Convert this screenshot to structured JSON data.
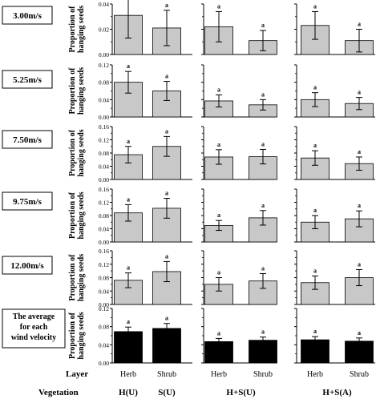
{
  "chart_data": {
    "type": "bar",
    "ylabel": "Proportion of hanging seeds",
    "row_labels": [
      "3.00m/s",
      "5.25m/s",
      "7.50m/s",
      "9.75m/s",
      "12.00m/s",
      "The average for each wind velocity"
    ],
    "panel_sets": [
      {
        "vegetation_labels": [
          "H(U)",
          "S(U)"
        ],
        "layer_labels": [
          "Herb",
          "Shrub"
        ]
      },
      {
        "vegetation_labels": [
          "H+S(U)"
        ],
        "layer_labels": [
          "Herb",
          "Shrub"
        ]
      },
      {
        "vegetation_labels": [
          "H+S(A)"
        ],
        "layer_labels": [
          "Herb",
          "Shrub"
        ]
      }
    ],
    "footer": {
      "layer_title": "Layer",
      "vegetation_title": "Vegetation"
    },
    "rows": [
      {
        "ylim": [
          0,
          0.04
        ],
        "yticks": [
          "0.00",
          "0.02",
          "0.04"
        ],
        "fill": "#c8c8c8",
        "bars": [
          {
            "value": 0.031,
            "error": 0.018,
            "sig": "a"
          },
          {
            "value": 0.021,
            "error": 0.014,
            "sig": "a"
          },
          {
            "value": 0.022,
            "error": 0.012,
            "sig": "a"
          },
          {
            "value": 0.011,
            "error": 0.008,
            "sig": "a"
          },
          {
            "value": 0.023,
            "error": 0.011,
            "sig": "a"
          },
          {
            "value": 0.011,
            "error": 0.009,
            "sig": "a"
          }
        ]
      },
      {
        "ylim": [
          0,
          0.12
        ],
        "yticks": [
          "0.00",
          "0.04",
          "0.08",
          "0.12"
        ],
        "fill": "#c8c8c8",
        "bars": [
          {
            "value": 0.08,
            "error": 0.025,
            "sig": "a"
          },
          {
            "value": 0.06,
            "error": 0.022,
            "sig": "a"
          },
          {
            "value": 0.037,
            "error": 0.014,
            "sig": "a"
          },
          {
            "value": 0.028,
            "error": 0.012,
            "sig": "a"
          },
          {
            "value": 0.04,
            "error": 0.016,
            "sig": "a"
          },
          {
            "value": 0.031,
            "error": 0.014,
            "sig": "a"
          }
        ]
      },
      {
        "ylim": [
          0,
          0.16
        ],
        "yticks": [
          "0.00",
          "0.04",
          "0.08",
          "0.12",
          "0.16"
        ],
        "fill": "#c8c8c8",
        "bars": [
          {
            "value": 0.075,
            "error": 0.025,
            "sig": "a"
          },
          {
            "value": 0.1,
            "error": 0.03,
            "sig": "a"
          },
          {
            "value": 0.068,
            "error": 0.022,
            "sig": "a"
          },
          {
            "value": 0.069,
            "error": 0.022,
            "sig": "a"
          },
          {
            "value": 0.065,
            "error": 0.022,
            "sig": "a"
          },
          {
            "value": 0.048,
            "error": 0.02,
            "sig": "a"
          }
        ]
      },
      {
        "ylim": [
          0,
          0.16
        ],
        "yticks": [
          "0.00",
          "0.04",
          "0.08",
          "0.12",
          "0.16"
        ],
        "fill": "#c8c8c8",
        "bars": [
          {
            "value": 0.088,
            "error": 0.025,
            "sig": "a"
          },
          {
            "value": 0.102,
            "error": 0.03,
            "sig": "a"
          },
          {
            "value": 0.05,
            "error": 0.015,
            "sig": "a"
          },
          {
            "value": 0.073,
            "error": 0.022,
            "sig": "a"
          },
          {
            "value": 0.06,
            "error": 0.02,
            "sig": "a"
          },
          {
            "value": 0.07,
            "error": 0.024,
            "sig": "a"
          }
        ]
      },
      {
        "ylim": [
          0,
          0.16
        ],
        "yticks": [
          "0.00",
          "0.04",
          "0.08",
          "0.12",
          "0.16"
        ],
        "fill": "#c8c8c8",
        "bars": [
          {
            "value": 0.072,
            "error": 0.022,
            "sig": "a"
          },
          {
            "value": 0.098,
            "error": 0.03,
            "sig": "a"
          },
          {
            "value": 0.06,
            "error": 0.02,
            "sig": "a"
          },
          {
            "value": 0.07,
            "error": 0.022,
            "sig": "a"
          },
          {
            "value": 0.065,
            "error": 0.02,
            "sig": "a"
          },
          {
            "value": 0.08,
            "error": 0.024,
            "sig": "a"
          }
        ]
      },
      {
        "ylim": [
          0,
          0.12
        ],
        "yticks": [
          "0.00",
          "0.04",
          "0.08",
          "0.12"
        ],
        "fill": "#000000",
        "bars": [
          {
            "value": 0.069,
            "error": 0.01,
            "sig": "a"
          },
          {
            "value": 0.076,
            "error": 0.011,
            "sig": "a"
          },
          {
            "value": 0.047,
            "error": 0.007,
            "sig": "a"
          },
          {
            "value": 0.05,
            "error": 0.007,
            "sig": "a"
          },
          {
            "value": 0.051,
            "error": 0.007,
            "sig": "a"
          },
          {
            "value": 0.048,
            "error": 0.007,
            "sig": "a"
          }
        ]
      }
    ]
  }
}
